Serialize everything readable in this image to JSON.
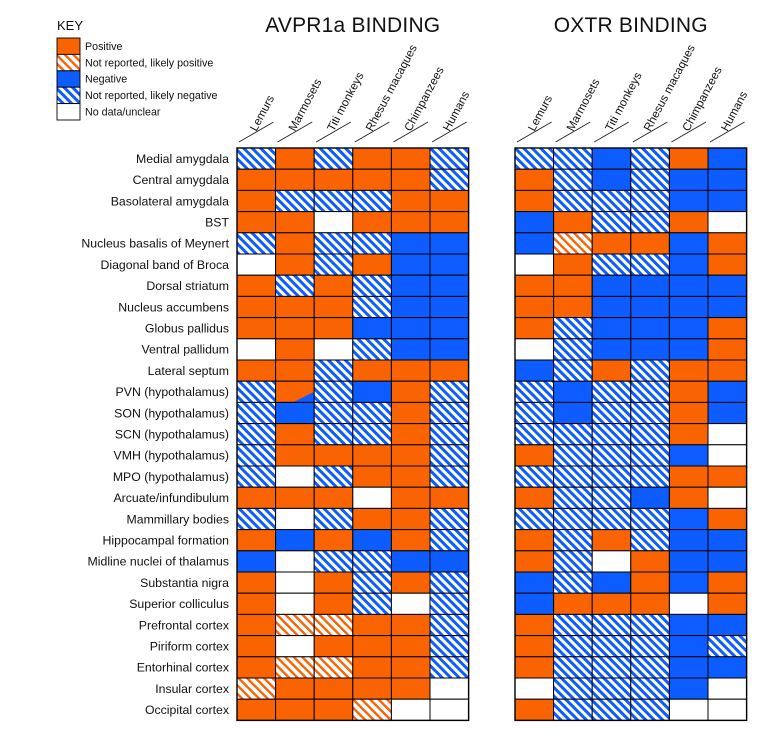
{
  "chart_data": {
    "type": "heatmap",
    "key": {
      "title": "KEY",
      "categories": [
        {
          "code": "P",
          "label": "Positive",
          "color": "#f96302",
          "pattern": "solid"
        },
        {
          "code": "p",
          "label": "Not reported, likely positive",
          "color": "#f96302",
          "pattern": "hatched"
        },
        {
          "code": "N",
          "label": "Negative",
          "color": "#0d5cff",
          "pattern": "solid"
        },
        {
          "code": "n",
          "label": "Not reported, likely negative",
          "color": "#0d5cff",
          "pattern": "hatched"
        },
        {
          "code": "W",
          "label": "No data/unclear",
          "color": "#ffffff",
          "pattern": "solid"
        }
      ]
    },
    "species": [
      "Lemurs",
      "Marmosets",
      "Titi monkeys",
      "Rhesus macaques",
      "Chimpanzees",
      "Humans"
    ],
    "regions": [
      "Medial amygdala",
      "Central amygdala",
      "Basolateral amygdala",
      "BST",
      "Nucleus basalis of Meynert",
      "Diagonal band of Broca",
      "Dorsal striatum",
      "Nucleus accumbens",
      "Globus pallidus",
      "Ventral pallidum",
      "Lateral septum",
      "PVN (hypothalamus)",
      "SON (hypothalamus)",
      "SCN (hypothalamus)",
      "VMH (hypothalamus)",
      "MPO (hypothalamus)",
      "Arcuate/infundibulum",
      "Mammillary bodies",
      "Hippocampal formation",
      "Midline nuclei of thalamus",
      "Substantia nigra",
      "Superior colliculus",
      "Prefrontal cortex",
      "Piriform cortex",
      "Entorhinal cortex",
      "Insular cortex",
      "Occipital cortex"
    ],
    "panels": [
      {
        "title": "AVPR1a BINDING",
        "values": [
          [
            "n",
            "P",
            "n",
            "P",
            "P",
            "n"
          ],
          [
            "P",
            "P",
            "P",
            "P",
            "P",
            "n"
          ],
          [
            "P",
            "n",
            "n",
            "n",
            "P",
            "P"
          ],
          [
            "P",
            "P",
            "W",
            "P",
            "P",
            "P"
          ],
          [
            "n",
            "P",
            "n",
            "n",
            "N",
            "N"
          ],
          [
            "W",
            "P",
            "n",
            "P",
            "N",
            "N"
          ],
          [
            "P",
            "n",
            "P",
            "n",
            "N",
            "N"
          ],
          [
            "P",
            "P",
            "P",
            "n",
            "N",
            "N"
          ],
          [
            "P",
            "P",
            "P",
            "N",
            "N",
            "N"
          ],
          [
            "W",
            "P",
            "W",
            "n",
            "N",
            "N"
          ],
          [
            "P",
            "P",
            "n",
            "P",
            "P",
            "P"
          ],
          [
            "n",
            "P/N",
            "n",
            "N",
            "P",
            "n"
          ],
          [
            "n",
            "N",
            "n",
            "n",
            "P",
            "n"
          ],
          [
            "n",
            "P",
            "n",
            "n",
            "P",
            "n"
          ],
          [
            "n",
            "P",
            "P",
            "P",
            "P",
            "n"
          ],
          [
            "n",
            "W",
            "n",
            "P",
            "P",
            "n"
          ],
          [
            "P",
            "P",
            "P",
            "W",
            "P",
            "P"
          ],
          [
            "n",
            "W",
            "n",
            "P",
            "P",
            "n"
          ],
          [
            "P",
            "N",
            "P",
            "N",
            "P",
            "n"
          ],
          [
            "N",
            "W",
            "n",
            "n",
            "N",
            "N"
          ],
          [
            "P",
            "W",
            "P",
            "n",
            "P",
            "n"
          ],
          [
            "P",
            "W",
            "P",
            "n",
            "W",
            "n"
          ],
          [
            "P",
            "p",
            "p",
            "P",
            "P",
            "n"
          ],
          [
            "P",
            "W",
            "P",
            "P",
            "P",
            "n"
          ],
          [
            "P",
            "p",
            "p",
            "P",
            "P",
            "n"
          ],
          [
            "p",
            "P",
            "P",
            "P",
            "P",
            "W"
          ],
          [
            "P",
            "P",
            "P",
            "p",
            "W",
            "W"
          ]
        ]
      },
      {
        "title": "OXTR BINDING",
        "values": [
          [
            "n",
            "n",
            "N",
            "n",
            "P",
            "N"
          ],
          [
            "P",
            "n",
            "N",
            "n",
            "N",
            "N"
          ],
          [
            "P",
            "n",
            "n",
            "n",
            "N",
            "N"
          ],
          [
            "N",
            "P",
            "n",
            "n",
            "P",
            "W"
          ],
          [
            "N",
            "p",
            "P",
            "P",
            "N",
            "P"
          ],
          [
            "W",
            "P",
            "n",
            "n",
            "N",
            "P"
          ],
          [
            "P",
            "P",
            "N",
            "N",
            "N",
            "N"
          ],
          [
            "P",
            "P",
            "N",
            "N",
            "N",
            "N"
          ],
          [
            "P",
            "n",
            "N",
            "N",
            "N",
            "P"
          ],
          [
            "W",
            "n",
            "N",
            "N",
            "N",
            "P"
          ],
          [
            "N",
            "n",
            "P",
            "n",
            "P",
            "P"
          ],
          [
            "n",
            "N",
            "n",
            "n",
            "P",
            "N"
          ],
          [
            "n",
            "N",
            "n",
            "n",
            "P",
            "N"
          ],
          [
            "n",
            "n",
            "n",
            "n",
            "P",
            "W"
          ],
          [
            "P",
            "n",
            "n",
            "n",
            "N",
            "W"
          ],
          [
            "n",
            "n",
            "n",
            "n",
            "P",
            "P"
          ],
          [
            "P",
            "n",
            "n",
            "N",
            "P",
            "W"
          ],
          [
            "n",
            "n",
            "n",
            "n",
            "N",
            "P"
          ],
          [
            "P",
            "n",
            "P",
            "n",
            "N",
            "N"
          ],
          [
            "P",
            "n",
            "W",
            "P",
            "N",
            "N"
          ],
          [
            "N",
            "n",
            "N",
            "P",
            "N",
            "P"
          ],
          [
            "N",
            "P",
            "P",
            "P",
            "W",
            "P"
          ],
          [
            "P",
            "n",
            "n",
            "n",
            "N",
            "N"
          ],
          [
            "P",
            "n",
            "n",
            "n",
            "N",
            "n"
          ],
          [
            "P",
            "n",
            "n",
            "n",
            "N",
            "N"
          ],
          [
            "W",
            "n",
            "n",
            "n",
            "N",
            "W"
          ],
          [
            "P",
            "n",
            "n",
            "n",
            "W",
            "W"
          ]
        ]
      }
    ]
  }
}
